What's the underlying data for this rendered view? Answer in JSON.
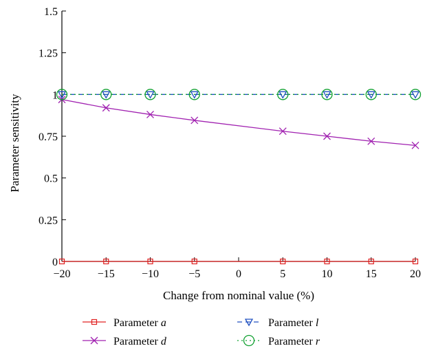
{
  "chart_data": {
    "type": "line",
    "xlabel": "Change from nominal value (%)",
    "ylabel": "Parameter sensitivity",
    "xlim": [
      -20,
      20
    ],
    "ylim": [
      0,
      1.5
    ],
    "xticks": [
      -20,
      -15,
      -10,
      -5,
      0,
      5,
      10,
      15,
      20
    ],
    "xtick_labels": [
      "−20",
      "−15",
      "−10",
      "−5",
      "0",
      "5",
      "10",
      "15",
      "20"
    ],
    "yticks": [
      0,
      0.25,
      0.5,
      0.75,
      1,
      1.25,
      1.5
    ],
    "ytick_labels": [
      "0",
      "0.25",
      "0.5",
      "0.75",
      "1",
      "1.25",
      "1.5"
    ],
    "grid": false,
    "legend_position": "bottom",
    "x": [
      -20,
      -15,
      -10,
      -5,
      5,
      10,
      15,
      20
    ],
    "series": [
      {
        "name": "Parameter a",
        "prefix": "Parameter ",
        "symbol": "a",
        "color": "#e02020",
        "marker": "square",
        "dash": "solid",
        "values": [
          0,
          0,
          0,
          0,
          0,
          0,
          0,
          0
        ]
      },
      {
        "name": "Parameter d",
        "prefix": "Parameter ",
        "symbol": "d",
        "color": "#a020b0",
        "marker": "x",
        "dash": "solid",
        "values": [
          0.97,
          0.92,
          0.88,
          0.845,
          0.78,
          0.75,
          0.72,
          0.695
        ]
      },
      {
        "name": "Parameter l",
        "prefix": "Parameter ",
        "symbol": "l",
        "color": "#2050c0",
        "marker": "triangle-down",
        "dash": "dashed",
        "values": [
          1,
          1,
          1,
          1,
          1,
          1,
          1,
          1
        ]
      },
      {
        "name": "Parameter r",
        "prefix": "Parameter ",
        "symbol": "r",
        "color": "#10a030",
        "marker": "circle",
        "dash": "dotted",
        "values": [
          1,
          1,
          1,
          1,
          1,
          1,
          1,
          1
        ]
      }
    ]
  }
}
